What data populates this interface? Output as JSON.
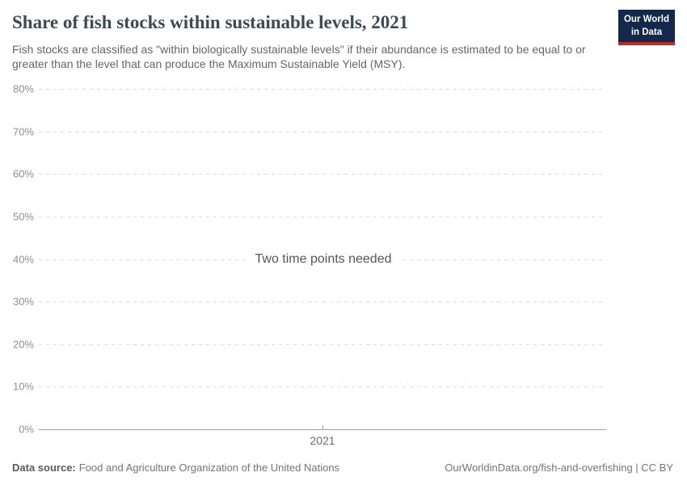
{
  "header": {
    "title": "Share of fish stocks within sustainable levels, 2021",
    "subtitle": "Fish stocks are classified as \"within biologically sustainable levels\" if their abundance is estimated to be equal to or greater than the level that can produce the Maximum Sustainable Yield (MSY).",
    "logo": {
      "line1": "Our World",
      "line2": "in Data"
    }
  },
  "chart_data": {
    "type": "line",
    "title": "Share of fish stocks within sustainable levels, 2021",
    "message": "Two time points needed",
    "series": [],
    "x_axis": {
      "ticks": [
        "2021"
      ]
    },
    "y_axis": {
      "ticks": [
        "80%",
        "70%",
        "60%",
        "50%",
        "40%",
        "30%",
        "20%",
        "10%",
        "0%"
      ],
      "range": [
        0,
        80
      ],
      "unit": "%",
      "grid": "dashed"
    },
    "legend_position": "none"
  },
  "footer": {
    "data_source_label": "Data source:",
    "data_source_value": "Food and Agriculture Organization of the United Nations",
    "attribution": "OurWorldinData.org/fish-and-overfishing | CC BY"
  },
  "colors": {
    "logo_navy": "#12294d",
    "logo_red": "#c2281f",
    "title": "#3c4a52",
    "subtitle": "#666666",
    "axis_label": "#8f8f8f",
    "gridline": "#dcdcdc",
    "axis_line": "#a1a1a1",
    "message": "#575757",
    "footer": "#757575"
  }
}
